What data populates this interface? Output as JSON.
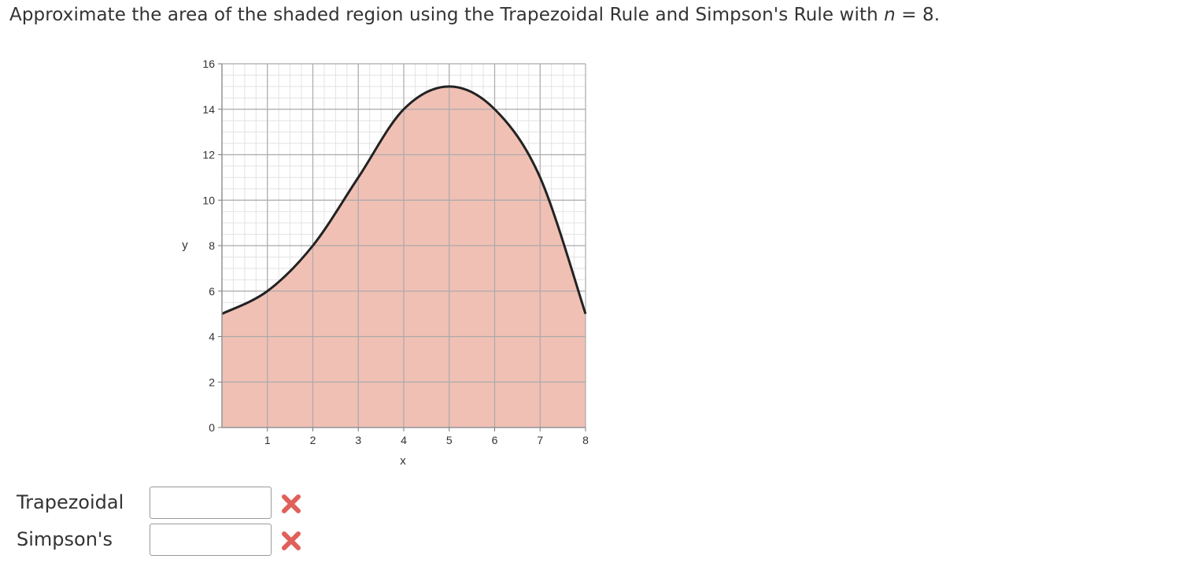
{
  "question": {
    "prefix": "Approximate the area of the shaded region using the Trapezoidal Rule and Simpson's Rule with ",
    "variable": "n",
    "suffix": " = 8."
  },
  "chart_data": {
    "type": "area",
    "xlabel": "x",
    "ylabel": "y",
    "xlim": [
      0,
      8
    ],
    "ylim": [
      0,
      16
    ],
    "xticks": [
      "1",
      "2",
      "3",
      "4",
      "5",
      "6",
      "7",
      "8"
    ],
    "yticks": [
      "0",
      "2",
      "4",
      "6",
      "8",
      "10",
      "12",
      "14",
      "16"
    ],
    "x": [
      0,
      1,
      2,
      3,
      4,
      5,
      6,
      7,
      8
    ],
    "y": [
      5,
      6,
      8,
      11,
      14,
      15,
      14,
      11,
      5
    ],
    "grid": true,
    "fill_color": "#f0c0b4",
    "curve_color": "#222222"
  },
  "answers": [
    {
      "label": "Trapezoidal",
      "value": "",
      "status": "incorrect-icon"
    },
    {
      "label": "Simpson's",
      "value": "",
      "status": "incorrect-icon"
    }
  ],
  "colors": {
    "text": "#333333",
    "incorrect": "#e0605a"
  }
}
